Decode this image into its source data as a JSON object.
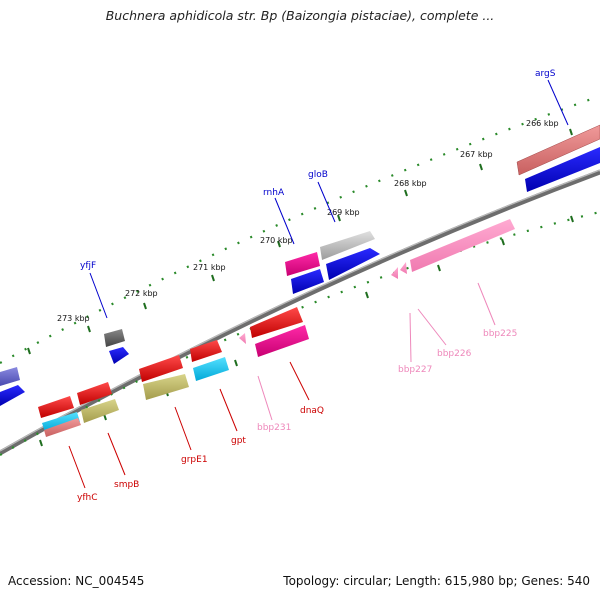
{
  "title": "Buchnera aphidicola str. Bp (Baizongia pistaciae), complete ...",
  "accession_text": "Accession: NC_004545",
  "topology_text": "Topology: circular; Length: 615,980 bp; Genes: 540",
  "ticks": [
    "266 kbp",
    "267 kbp",
    "268 kbp",
    "269 kbp",
    "270 kbp",
    "271 kbp",
    "272 kbp",
    "273 kbp"
  ],
  "outer_genes": [
    "argS",
    "gloB",
    "rnhA",
    "yfjF"
  ],
  "inner_genes": [
    "bbp225",
    "bbp226",
    "bbp227",
    "bbp231",
    "dnaQ",
    "gpt",
    "grpE1",
    "smpB",
    "yfhC"
  ],
  "colors": {
    "backbone": "#777777",
    "tick": "#2a8a2a",
    "outer_label": "#0000cc",
    "inner_red_label": "#cc0000",
    "inner_pink_label": "#ee88bb"
  }
}
